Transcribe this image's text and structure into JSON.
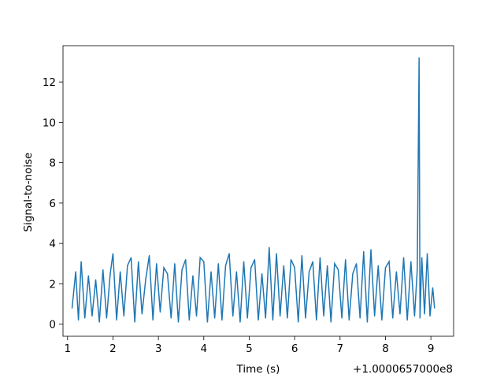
{
  "chart_data": {
    "type": "line",
    "title": "",
    "xlabel": "Time (s)",
    "ylabel": "Signal-to-noise",
    "x_offset_text": "+1.0000657000e8",
    "xlim": [
      0.9,
      9.5
    ],
    "ylim": [
      -0.6,
      13.8
    ],
    "x_ticks": [
      1,
      2,
      3,
      4,
      5,
      6,
      7,
      8,
      9
    ],
    "x_tick_labels": [
      "1",
      "2",
      "3",
      "4",
      "5",
      "6",
      "7",
      "8",
      "9"
    ],
    "y_ticks": [
      0,
      2,
      4,
      6,
      8,
      10,
      12
    ],
    "y_tick_labels": [
      "0",
      "2",
      "4",
      "6",
      "8",
      "10",
      "12"
    ],
    "grid": false,
    "series": [
      {
        "color": "#1f77b4",
        "x": [
          1.1,
          1.18,
          1.24,
          1.3,
          1.38,
          1.46,
          1.54,
          1.62,
          1.7,
          1.78,
          1.86,
          1.94,
          2.0,
          2.08,
          2.16,
          2.24,
          2.32,
          2.4,
          2.48,
          2.56,
          2.64,
          2.72,
          2.8,
          2.88,
          2.96,
          3.04,
          3.12,
          3.2,
          3.28,
          3.36,
          3.44,
          3.52,
          3.6,
          3.68,
          3.76,
          3.84,
          3.92,
          4.0,
          4.08,
          4.16,
          4.24,
          4.32,
          4.4,
          4.48,
          4.56,
          4.64,
          4.72,
          4.8,
          4.88,
          4.96,
          5.04,
          5.12,
          5.2,
          5.28,
          5.36,
          5.44,
          5.52,
          5.6,
          5.68,
          5.76,
          5.84,
          5.92,
          6.0,
          6.08,
          6.16,
          6.24,
          6.32,
          6.4,
          6.48,
          6.56,
          6.64,
          6.72,
          6.8,
          6.88,
          6.96,
          7.04,
          7.12,
          7.2,
          7.28,
          7.36,
          7.44,
          7.52,
          7.6,
          7.68,
          7.76,
          7.84,
          7.92,
          8.0,
          8.08,
          8.16,
          8.24,
          8.32,
          8.4,
          8.48,
          8.56,
          8.64,
          8.7,
          8.74,
          8.76,
          8.8,
          8.86,
          8.92,
          8.98,
          9.04,
          9.08
        ],
        "y": [
          0.8,
          2.6,
          0.2,
          3.1,
          0.3,
          2.4,
          0.4,
          2.2,
          0.1,
          2.7,
          0.3,
          2.5,
          3.5,
          0.2,
          2.6,
          0.4,
          2.9,
          3.3,
          0.1,
          3.1,
          0.5,
          2.2,
          3.4,
          0.2,
          3.0,
          0.6,
          2.8,
          2.5,
          0.3,
          3.0,
          0.1,
          2.7,
          3.2,
          0.2,
          2.4,
          0.4,
          3.3,
          3.1,
          0.1,
          2.6,
          0.3,
          3.0,
          0.2,
          2.9,
          3.5,
          0.4,
          2.6,
          0.1,
          3.1,
          0.3,
          2.8,
          3.2,
          0.2,
          2.5,
          0.3,
          3.8,
          0.2,
          3.5,
          0.4,
          2.9,
          0.3,
          3.2,
          2.8,
          0.1,
          3.4,
          0.3,
          2.6,
          3.1,
          0.2,
          3.3,
          0.4,
          2.9,
          0.1,
          3.0,
          2.7,
          0.3,
          3.2,
          0.2,
          2.5,
          3.0,
          0.3,
          3.6,
          0.1,
          3.7,
          0.4,
          2.9,
          0.2,
          2.8,
          3.1,
          0.3,
          2.6,
          0.5,
          3.3,
          0.2,
          3.1,
          0.4,
          2.7,
          13.2,
          0.3,
          3.3,
          0.5,
          3.5,
          0.4,
          1.8,
          0.8
        ]
      }
    ]
  }
}
